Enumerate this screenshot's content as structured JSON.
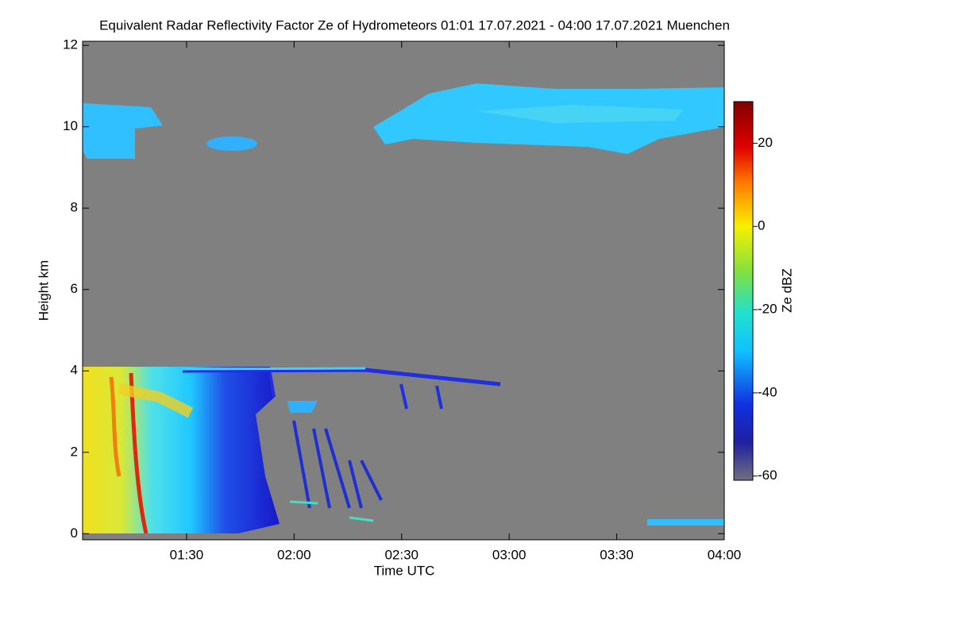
{
  "chart_data": {
    "type": "heatmap",
    "title": "Equivalent Radar Reflectivity Factor Ze of Hydrometeors   01:01 17.07.2021 - 04:00 17.07.2021 Muenchen",
    "xlabel": "Time UTC",
    "ylabel": "Height km",
    "colorbar_label": "Ze dBZ",
    "xlim": [
      61,
      240
    ],
    "xticks": [
      {
        "value": 90,
        "label": "01:30"
      },
      {
        "value": 120,
        "label": "02:00"
      },
      {
        "value": 150,
        "label": "02:30"
      },
      {
        "value": 180,
        "label": "03:00"
      },
      {
        "value": 210,
        "label": "03:30"
      },
      {
        "value": 240,
        "label": "04:00"
      }
    ],
    "ylim": [
      -0.15,
      12.1
    ],
    "yticks": [
      0,
      2,
      4,
      6,
      8,
      10,
      12
    ],
    "clim": [
      -61,
      30
    ],
    "cticks": [
      -60,
      -40,
      -20,
      0,
      20
    ]
  }
}
